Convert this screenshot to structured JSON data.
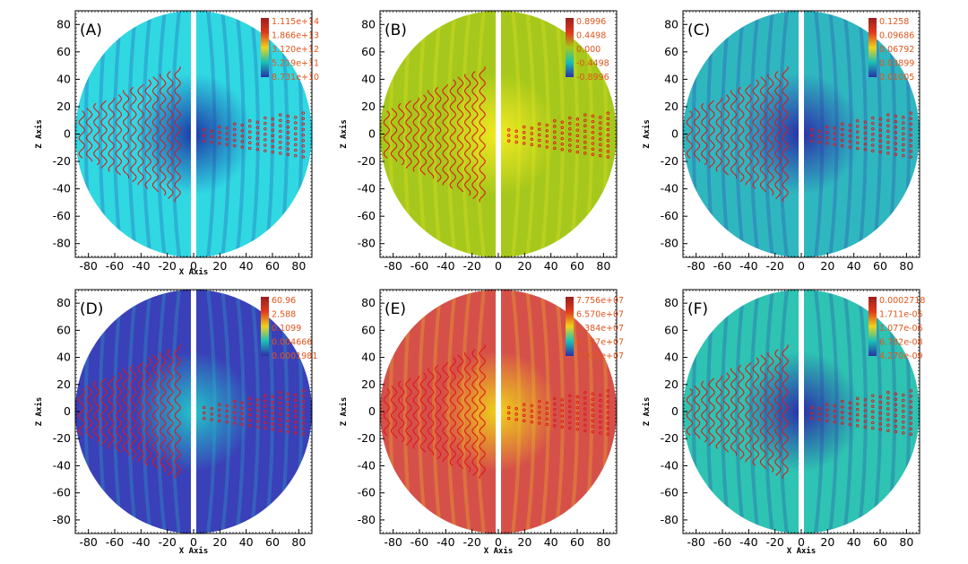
{
  "chart_data": [
    {
      "type": "heatmap",
      "panel_label": "(A)",
      "xlabel": "X Axis",
      "ylabel": "Z Axis",
      "xlim": [
        -90,
        90
      ],
      "ylim": [
        -90,
        90
      ],
      "xticks": [
        -80,
        -60,
        -40,
        -20,
        0,
        20,
        40,
        60,
        80
      ],
      "yticks": [
        -80,
        -60,
        -40,
        -20,
        0,
        20,
        40,
        60,
        80
      ],
      "colorbar_labels": [
        "1.115e+14",
        "1.866e+13",
        "3.120e+12",
        "5.219e+11",
        "8.731e+10"
      ],
      "colormap": [
        "#9a1f1f",
        "#e03a1c",
        "#f0d21a",
        "#18c0b6",
        "#2b2fa8"
      ],
      "background": "#30d8e2",
      "accent": "#1e3aa8"
    },
    {
      "type": "heatmap",
      "panel_label": "(B)",
      "xlabel": "",
      "ylabel": "Z Axis",
      "xlim": [
        -90,
        90
      ],
      "ylim": [
        -90,
        90
      ],
      "xticks": [
        -80,
        -60,
        -40,
        -20,
        0,
        20,
        40,
        60,
        80
      ],
      "yticks": [
        -80,
        -60,
        -40,
        -20,
        0,
        20,
        40,
        60,
        80
      ],
      "colorbar_labels": [
        "0.8996",
        "0.4498",
        "0.000",
        "-0.4498",
        "-0.8996"
      ],
      "colormap": [
        "#9a1f1f",
        "#e03a1c",
        "#a4c81a",
        "#18c0b6",
        "#2b2fa8"
      ],
      "background": "#a6c81c",
      "accent": "#f3ea20"
    },
    {
      "type": "heatmap",
      "panel_label": "(C)",
      "xlabel": "",
      "ylabel": "Z Axis",
      "xlim": [
        -90,
        90
      ],
      "ylim": [
        -90,
        90
      ],
      "xticks": [
        -80,
        -60,
        -40,
        -20,
        0,
        20,
        40,
        60,
        80
      ],
      "yticks": [
        -80,
        -60,
        -40,
        -20,
        0,
        20,
        40,
        60,
        80
      ],
      "colorbar_labels": [
        "0.1258",
        "0.09686",
        "0.06792",
        "0.03899",
        "0.01005"
      ],
      "colormap": [
        "#9a1f1f",
        "#e03a1c",
        "#f0d21a",
        "#18c0b6",
        "#2b2fa8"
      ],
      "background": "#2fb7c0",
      "accent": "#2b2fa8"
    },
    {
      "type": "heatmap",
      "panel_label": "(D)",
      "xlabel": "X Axis",
      "ylabel": "Z Axis",
      "xlim": [
        -90,
        90
      ],
      "ylim": [
        -90,
        90
      ],
      "xticks": [
        -80,
        -60,
        -40,
        -20,
        0,
        20,
        40,
        60,
        80
      ],
      "yticks": [
        -80,
        -60,
        -40,
        -20,
        0,
        20,
        40,
        60,
        80
      ],
      "colorbar_labels": [
        "60.96",
        "2.588",
        "0.1099",
        "0.004666",
        "0.0001981"
      ],
      "colormap": [
        "#9a1f1f",
        "#e03a1c",
        "#f0d21a",
        "#18c0b6",
        "#2b2fa8"
      ],
      "background": "#3a40b8",
      "accent": "#22c4c8"
    },
    {
      "type": "heatmap",
      "panel_label": "(E)",
      "xlabel": "X Axis",
      "ylabel": "Z Axis",
      "xlim": [
        -90,
        90
      ],
      "ylim": [
        -90,
        90
      ],
      "xticks": [
        -80,
        -60,
        -40,
        -20,
        0,
        20,
        40,
        60,
        80
      ],
      "yticks": [
        -80,
        -60,
        -40,
        -20,
        0,
        20,
        40,
        60,
        80
      ],
      "colorbar_labels": [
        "7.756e+07",
        "6.570e+07",
        "5.384e+07",
        "4.197e+07",
        "3.011e+07"
      ],
      "colormap": [
        "#9a1f1f",
        "#e03a1c",
        "#f0d21a",
        "#18c0b6",
        "#2b2fa8"
      ],
      "background": "#d6504a",
      "accent": "#f0d21a"
    },
    {
      "type": "heatmap",
      "panel_label": "(F)",
      "xlabel": "X Axis",
      "ylabel": "Z Axis",
      "xlim": [
        -90,
        90
      ],
      "ylim": [
        -90,
        90
      ],
      "xticks": [
        -80,
        -60,
        -40,
        -20,
        0,
        20,
        40,
        60,
        80
      ],
      "yticks": [
        -80,
        -60,
        -40,
        -20,
        0,
        20,
        40,
        60,
        80
      ],
      "colorbar_labels": [
        "0.0002718",
        "1.711e-05",
        "1.077e-06",
        "6.782e-08",
        "4.270e-09"
      ],
      "colormap": [
        "#9a1f1f",
        "#e03a1c",
        "#f0d21a",
        "#18c0b6",
        "#2b2fa8"
      ],
      "background": "#2ec3b2",
      "accent": "#2b2fa8"
    }
  ],
  "contour_color": "#e01818",
  "divider_color": "#ffffff"
}
